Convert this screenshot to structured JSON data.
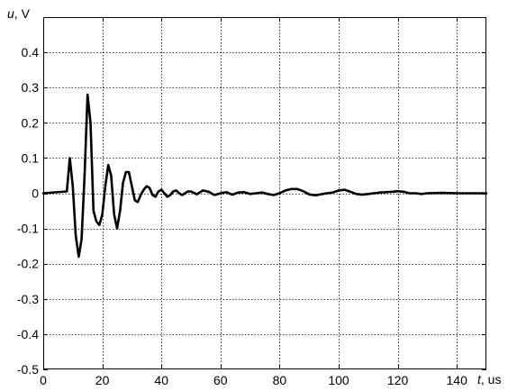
{
  "chart_data": {
    "type": "line",
    "title": "",
    "xlabel_symbol": "t",
    "xlabel_unit": ", us",
    "ylabel_symbol": "u",
    "ylabel_unit": ", V",
    "xlim": [
      0,
      150
    ],
    "ylim": [
      -0.5,
      0.5
    ],
    "grid": true,
    "xticks": [
      0,
      20,
      40,
      60,
      80,
      100,
      120,
      140
    ],
    "xtick_labels": [
      "0",
      "20",
      "40",
      "60",
      "80",
      "100",
      "120",
      "140"
    ],
    "yticks": [
      -0.5,
      -0.4,
      -0.3,
      -0.2,
      -0.1,
      0,
      0.1,
      0.2,
      0.3,
      0.4
    ],
    "ytick_labels": [
      "-0.5",
      "-0.4",
      "-0.3",
      "-0.2",
      "-0.1",
      "0",
      "0.1",
      "0.2",
      "0.3",
      "0.4"
    ],
    "series": [
      {
        "color": "#000000",
        "x": [
          0,
          8,
          9,
          10,
          11,
          12,
          13,
          14,
          15,
          16,
          17,
          18,
          19,
          20,
          21,
          22,
          23,
          24,
          25,
          26,
          27,
          28,
          29,
          30,
          31,
          32,
          33,
          34,
          35,
          36,
          37,
          38,
          39,
          40,
          41,
          42,
          43,
          44,
          45,
          46,
          47,
          48,
          49,
          50,
          52,
          54,
          56,
          58,
          60,
          62,
          64,
          66,
          68,
          70,
          72,
          74,
          76,
          78,
          80,
          82,
          84,
          86,
          88,
          90,
          92,
          94,
          96,
          98,
          100,
          102,
          104,
          106,
          108,
          110,
          112,
          114,
          116,
          118,
          120,
          122,
          124,
          126,
          128,
          130,
          135,
          140,
          145,
          150
        ],
        "y": [
          0,
          0.005,
          0.1,
          0.02,
          -0.12,
          -0.18,
          -0.13,
          0.05,
          0.28,
          0.2,
          -0.05,
          -0.08,
          -0.09,
          -0.06,
          0.02,
          0.08,
          0.05,
          -0.06,
          -0.1,
          -0.05,
          0.03,
          0.06,
          0.06,
          0.02,
          -0.02,
          -0.025,
          -0.005,
          0.01,
          0.02,
          0.015,
          -0.005,
          -0.01,
          0.005,
          0.01,
          0.0,
          -0.01,
          -0.005,
          0.005,
          0.008,
          0.0,
          -0.005,
          0.0,
          0.005,
          0.005,
          -0.003,
          0.008,
          0.004,
          -0.005,
          0.0,
          0.003,
          -0.004,
          0.002,
          0.003,
          -0.002,
          0.0,
          0.002,
          -0.002,
          -0.005,
          0.0,
          0.008,
          0.012,
          0.012,
          0.006,
          -0.003,
          -0.006,
          -0.003,
          0.0,
          0.002,
          0.008,
          0.01,
          0.004,
          -0.002,
          -0.004,
          -0.002,
          0.0,
          0.002,
          0.003,
          0.004,
          0.006,
          0.004,
          0.0,
          0.0,
          -0.002,
          0.0,
          0.001,
          0.0,
          0.0,
          0.0
        ]
      }
    ]
  }
}
